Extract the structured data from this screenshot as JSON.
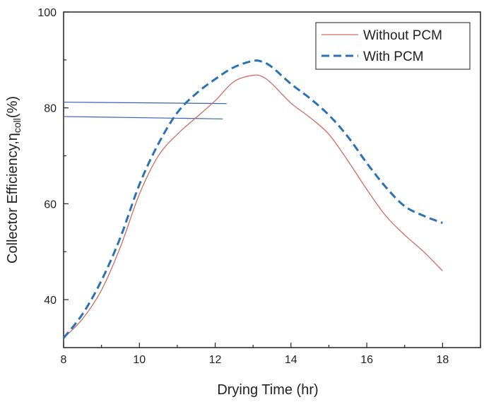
{
  "chart_data": {
    "type": "line",
    "xlabel": "Drying Time (hr)",
    "ylabel_main": "Collector Efficiency",
    "ylabel_eta": "η",
    "ylabel_sub": "coll",
    "ylabel_unit": "(%)",
    "xlim": [
      8,
      19
    ],
    "ylim": [
      30,
      100
    ],
    "xticks": [
      8,
      10,
      12,
      14,
      16,
      18
    ],
    "yticks": [
      40,
      60,
      80,
      100
    ],
    "series": [
      {
        "name": "Without PCM",
        "color": "#cf6d5f",
        "style": "solid",
        "x": [
          8,
          8.5,
          9,
          9.5,
          10,
          10.5,
          11,
          11.5,
          12,
          12.5,
          13,
          13.25,
          13.5,
          14,
          14.5,
          15,
          15.5,
          16,
          16.5,
          17,
          17.5,
          18
        ],
        "y": [
          32,
          36,
          42,
          51,
          62,
          70,
          74.5,
          78,
          81.5,
          85.5,
          86.8,
          86.5,
          85,
          81,
          78,
          74.5,
          69,
          63,
          57.5,
          53.5,
          50,
          46
        ]
      },
      {
        "name": "With PCM",
        "color": "#2a72b5",
        "style": "dashed",
        "x": [
          8,
          8.5,
          9,
          9.5,
          10,
          10.5,
          11,
          11.5,
          12,
          12.5,
          13,
          13.25,
          13.5,
          14,
          14.5,
          15,
          15.5,
          16,
          16.5,
          17,
          17.5,
          18
        ],
        "y": [
          32,
          37,
          44,
          53,
          64,
          72.5,
          79,
          83,
          86,
          88.5,
          89.8,
          89.6,
          88.5,
          85,
          82,
          78.5,
          74,
          68.5,
          63.5,
          59.5,
          57.5,
          56
        ]
      }
    ],
    "annotations": [
      {
        "type": "hline",
        "x_start": 8,
        "x_end": 12.3,
        "y_start": 81.2,
        "y_end": 80.9,
        "color": "#3b63b0"
      },
      {
        "type": "hline",
        "x_start": 8,
        "x_end": 12.2,
        "y_start": 78.2,
        "y_end": 77.7,
        "color": "#3b63b0"
      }
    ],
    "legend_position": "top-right"
  }
}
